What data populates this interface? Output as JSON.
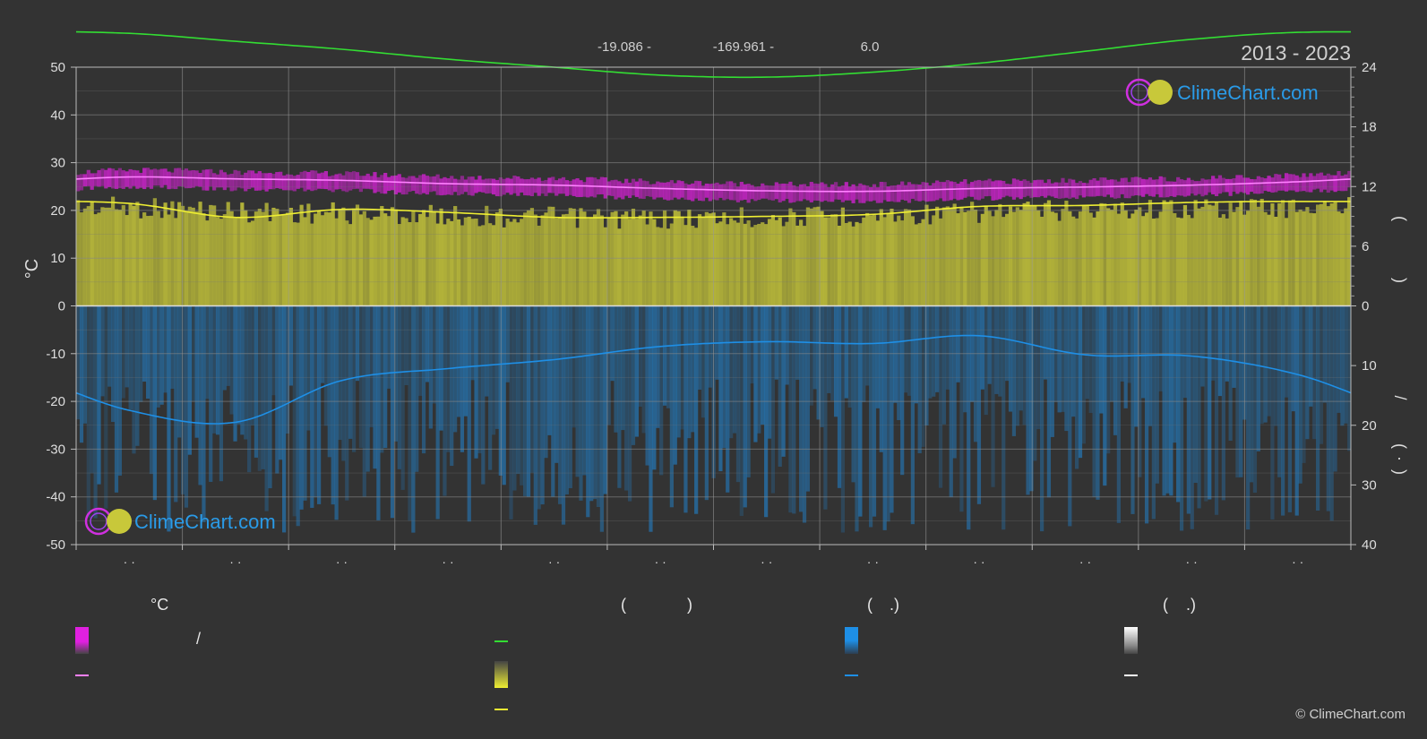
{
  "header": {
    "latitude_text": "-19.086 -",
    "longitude_text": "-169.961 -",
    "elevation_text": "6.0",
    "years": "2013 - 2023"
  },
  "watermark": {
    "text": "ClimeChart.com"
  },
  "copyright": "© ClimeChart.com",
  "axes": {
    "left_label": "°C",
    "left_ticks": [
      "50",
      "40",
      "30",
      "20",
      "10",
      "0",
      "-10",
      "-20",
      "-30",
      "-40",
      "-50"
    ],
    "right_upper_ticks": [
      "24",
      "18",
      "12",
      "6",
      "0"
    ],
    "right_lower_ticks": [
      "10",
      "20",
      "30",
      "40"
    ],
    "right_upper_label_glyphs": [
      "(",
      ")"
    ],
    "right_lower_label_glyphs": [
      "/",
      "(",
      "·",
      ")"
    ],
    "x_tick_labels": [
      "· ·",
      "· ·",
      "· ·",
      "· ·",
      "· ·",
      "· ·",
      "· ·",
      "· ·",
      "· ·",
      "· ·",
      "· ·",
      "· ·"
    ]
  },
  "legend": {
    "col1": {
      "header": "°C",
      "slash": "/"
    },
    "col2": {
      "header_open": "(",
      "header_close": ")"
    },
    "col3": {
      "header_open": "(",
      "header_close": ".)"
    },
    "col4": {
      "header_open": "(",
      "header_close": ".)"
    }
  },
  "colors": {
    "background": "#333333",
    "magenta": "#e020e0",
    "pink_line": "#ff80ff",
    "green_line": "#33dd33",
    "yellow_line": "#eeee33",
    "sunshine_fill": "#b8b83a",
    "blue": "#1e8fe6",
    "logo_text": "#2a9be8"
  },
  "chart_data": {
    "type": "area",
    "x": [
      1,
      2,
      3,
      4,
      5,
      6,
      7,
      8,
      9,
      10,
      11,
      12
    ],
    "xlim": [
      0.5,
      12.5
    ],
    "ylim_left": [
      -50,
      50
    ],
    "ylim_right_upper": [
      0,
      24
    ],
    "ylim_right_lower": [
      0,
      40
    ],
    "grid": true,
    "series": [
      {
        "values": [
          27.0,
          26.6,
          26.3,
          25.6,
          25.3,
          24.6,
          24.1,
          24.0,
          24.6,
          24.9,
          25.3,
          26.0
        ]
      },
      {
        "values": [
          27.4,
          26.6,
          25.8,
          24.8,
          24.0,
          23.2,
          23.0,
          23.5,
          24.4,
          25.6,
          26.8,
          27.5
        ]
      },
      {
        "values": [
          11.0,
          10.6,
          10.4,
          10.2,
          10.0,
          9.9,
          10.0,
          10.2,
          10.5,
          10.8,
          10.9,
          11.0
        ]
      },
      {
        "values": [
          10.3,
          8.9,
          9.7,
          9.4,
          8.9,
          8.9,
          9.0,
          9.2,
          10.0,
          10.1,
          10.4,
          10.5
        ]
      },
      {
        "values": [
          17.5,
          19.5,
          12.5,
          10.5,
          9.0,
          6.8,
          6.0,
          6.3,
          5.0,
          8.2,
          8.4,
          11.5
        ]
      }
    ]
  }
}
